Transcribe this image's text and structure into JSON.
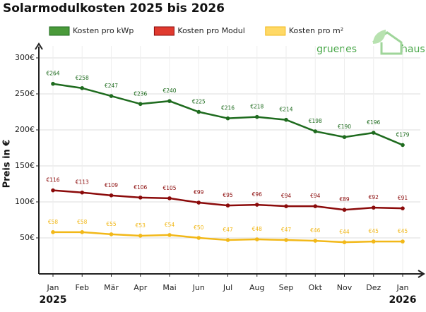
{
  "chart_data": {
    "type": "line",
    "title": "Solarmodulkosten 2025 bis 2026",
    "y_label": "Preis in €",
    "categories": [
      "Jan",
      "Feb",
      "Mär",
      "Apr",
      "Mai",
      "Jun",
      "Jul",
      "Aug",
      "Sep",
      "Okt",
      "Nov",
      "Dez",
      "Jan"
    ],
    "year_labels": [
      {
        "index": 0,
        "label": "2025"
      },
      {
        "index": 12,
        "label": "2026"
      }
    ],
    "series": [
      {
        "name": "Kosten pro kWp",
        "color": "#1e6b1e",
        "legend_color": "#4a9a3a",
        "values": [
          264,
          258,
          247,
          236,
          240,
          225,
          216,
          218,
          214,
          198,
          190,
          196,
          179
        ],
        "value_labels": [
          "€264",
          "€258",
          "€247",
          "€236",
          "€240",
          "€225",
          "€216",
          "€218",
          "€214",
          "€198",
          "€190",
          "€196",
          "€179"
        ]
      },
      {
        "name": "Kosten pro Modul",
        "color": "#8b0a0a",
        "legend_color": "#e03a2f",
        "values": [
          116,
          113,
          109,
          106,
          105,
          99,
          95,
          96,
          94,
          94,
          89,
          92,
          91
        ],
        "value_labels": [
          "€116",
          "€113",
          "€109",
          "€106",
          "€105",
          "€99",
          "€95",
          "€96",
          "€94",
          "€94",
          "€89",
          "€92",
          "€91"
        ]
      },
      {
        "name": "Kosten pro m²",
        "color": "#f2b818",
        "legend_color": "#ffd966",
        "values": [
          58,
          58,
          55,
          53,
          54,
          50,
          47,
          48,
          47,
          46,
          44,
          45,
          45
        ],
        "value_labels": [
          "€58",
          "€58",
          "€55",
          "€53",
          "€54",
          "€50",
          "€47",
          "€48",
          "€47",
          "€46",
          "€44",
          "€45",
          "€45"
        ]
      }
    ],
    "ylim": [
      0,
      300
    ],
    "yticks": [
      {
        "value": 50,
        "label": "50€"
      },
      {
        "value": 100,
        "label": "100€"
      },
      {
        "value": 150,
        "label": "150€"
      },
      {
        "value": 200,
        "label": "200€"
      },
      {
        "value": 250,
        "label": "250€"
      },
      {
        "value": 300,
        "label": "300€"
      }
    ],
    "grid": true,
    "logo": [
      "gruenes",
      "haus"
    ]
  }
}
